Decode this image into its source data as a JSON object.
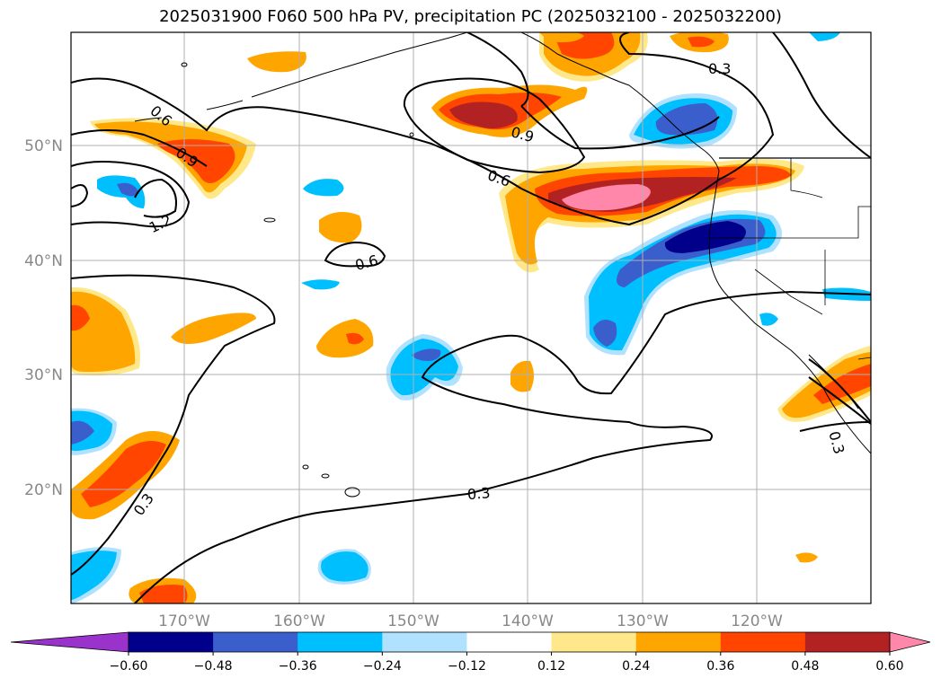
{
  "title": "2025031900 F060 500 hPa PV, precipitation PC (2025032100 - 2025032200)",
  "lat_labels": [
    "50°N",
    "40°N",
    "30°N",
    "20°N"
  ],
  "lon_labels": [
    "170°W",
    "160°W",
    "150°W",
    "140°W",
    "130°W",
    "120°W"
  ],
  "contour_labels": [
    "0.6",
    "0.9",
    "1.2",
    "0.9",
    "0.6",
    "0.6",
    "0.3",
    "0.3",
    "0.3",
    "0.3"
  ],
  "colorbar": {
    "ticks": [
      "−0.60",
      "−0.48",
      "−0.36",
      "−0.24",
      "−0.12",
      "0.12",
      "0.24",
      "0.36",
      "0.48",
      "0.60"
    ],
    "colors": [
      "#9933cc",
      "#00008b",
      "#3a5fcd",
      "#00bfff",
      "#b0e2ff",
      "#ffffff",
      "#ffe88a",
      "#ffa500",
      "#ff4500",
      "#b22222",
      "#ff88aa"
    ]
  }
}
